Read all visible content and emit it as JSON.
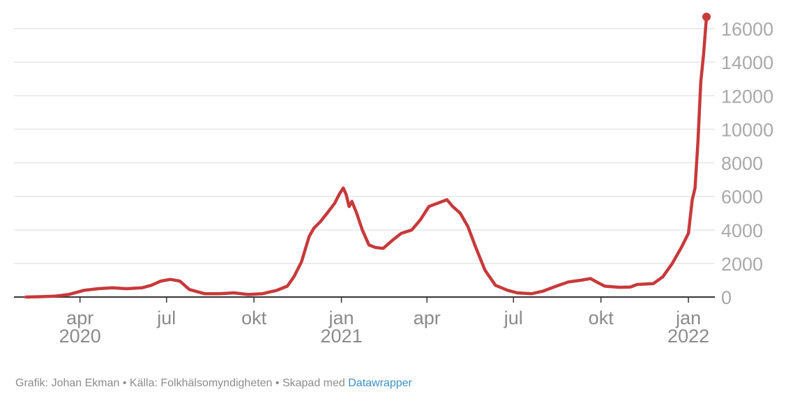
{
  "footer": {
    "text": "Grafik: Johan Ekman • Källa: Folkhälsomyndigheten • Skapad med",
    "link": "Datawrapper"
  },
  "colors": {
    "line": "#c8393a",
    "grid": "#e6e6e6",
    "tick": "#a9a9a9"
  },
  "chart_data": {
    "type": "line",
    "title": "",
    "xlabel": "",
    "ylabel": "",
    "ylim": [
      0,
      16000
    ],
    "yticks": [
      0,
      2000,
      4000,
      6000,
      8000,
      10000,
      12000,
      14000,
      16000
    ],
    "xticks": [
      {
        "date": "2020-04-01",
        "label": "apr",
        "year": "2020"
      },
      {
        "date": "2020-07-01",
        "label": "jul",
        "year": ""
      },
      {
        "date": "2020-10-01",
        "label": "okt",
        "year": ""
      },
      {
        "date": "2021-01-01",
        "label": "jan",
        "year": "2021"
      },
      {
        "date": "2021-04-01",
        "label": "apr",
        "year": ""
      },
      {
        "date": "2021-07-01",
        "label": "jul",
        "year": ""
      },
      {
        "date": "2021-10-01",
        "label": "okt",
        "year": ""
      },
      {
        "date": "2022-01-01",
        "label": "jan",
        "year": "2022"
      }
    ],
    "grid": true,
    "series": [
      {
        "points": [
          [
            "2020-02-04",
            0
          ],
          [
            "2020-02-20",
            20
          ],
          [
            "2020-03-05",
            50
          ],
          [
            "2020-03-20",
            150
          ],
          [
            "2020-04-05",
            400
          ],
          [
            "2020-04-20",
            500
          ],
          [
            "2020-05-05",
            550
          ],
          [
            "2020-05-20",
            500
          ],
          [
            "2020-06-05",
            550
          ],
          [
            "2020-06-15",
            700
          ],
          [
            "2020-06-25",
            950
          ],
          [
            "2020-07-05",
            1050
          ],
          [
            "2020-07-15",
            950
          ],
          [
            "2020-07-25",
            450
          ],
          [
            "2020-08-10",
            200
          ],
          [
            "2020-08-25",
            200
          ],
          [
            "2020-09-10",
            250
          ],
          [
            "2020-09-25",
            150
          ],
          [
            "2020-10-10",
            200
          ],
          [
            "2020-10-25",
            400
          ],
          [
            "2020-11-05",
            650
          ],
          [
            "2020-11-12",
            1200
          ],
          [
            "2020-11-20",
            2100
          ],
          [
            "2020-11-28",
            3600
          ],
          [
            "2020-12-03",
            4100
          ],
          [
            "2020-12-10",
            4500
          ],
          [
            "2020-12-17",
            5000
          ],
          [
            "2020-12-25",
            5600
          ],
          [
            "2020-12-30",
            6150
          ],
          [
            "2021-01-03",
            6500
          ],
          [
            "2021-01-06",
            6100
          ],
          [
            "2021-01-09",
            5400
          ],
          [
            "2021-01-12",
            5700
          ],
          [
            "2021-01-17",
            5000
          ],
          [
            "2021-01-23",
            4000
          ],
          [
            "2021-01-30",
            3100
          ],
          [
            "2021-02-06",
            2950
          ],
          [
            "2021-02-14",
            2900
          ],
          [
            "2021-02-24",
            3400
          ],
          [
            "2021-03-05",
            3800
          ],
          [
            "2021-03-16",
            4000
          ],
          [
            "2021-03-25",
            4600
          ],
          [
            "2021-04-03",
            5400
          ],
          [
            "2021-04-15",
            5650
          ],
          [
            "2021-04-22",
            5800
          ],
          [
            "2021-04-28",
            5400
          ],
          [
            "2021-05-06",
            5000
          ],
          [
            "2021-05-14",
            4200
          ],
          [
            "2021-05-22",
            3000
          ],
          [
            "2021-06-01",
            1600
          ],
          [
            "2021-06-12",
            700
          ],
          [
            "2021-06-25",
            400
          ],
          [
            "2021-07-05",
            250
          ],
          [
            "2021-07-20",
            200
          ],
          [
            "2021-08-01",
            350
          ],
          [
            "2021-08-15",
            650
          ],
          [
            "2021-08-28",
            900
          ],
          [
            "2021-09-10",
            1000
          ],
          [
            "2021-09-20",
            1100
          ],
          [
            "2021-09-28",
            850
          ],
          [
            "2021-10-05",
            650
          ],
          [
            "2021-10-20",
            580
          ],
          [
            "2021-11-01",
            600
          ],
          [
            "2021-11-08",
            750
          ],
          [
            "2021-11-25",
            800
          ],
          [
            "2021-12-05",
            1200
          ],
          [
            "2021-12-15",
            2000
          ],
          [
            "2021-12-25",
            3000
          ],
          [
            "2022-01-01",
            3800
          ],
          [
            "2022-01-05",
            5800
          ],
          [
            "2022-01-08",
            6500
          ],
          [
            "2022-01-11",
            9200
          ],
          [
            "2022-01-14",
            12800
          ],
          [
            "2022-01-17",
            14500
          ],
          [
            "2022-01-20",
            16700
          ]
        ]
      }
    ]
  }
}
